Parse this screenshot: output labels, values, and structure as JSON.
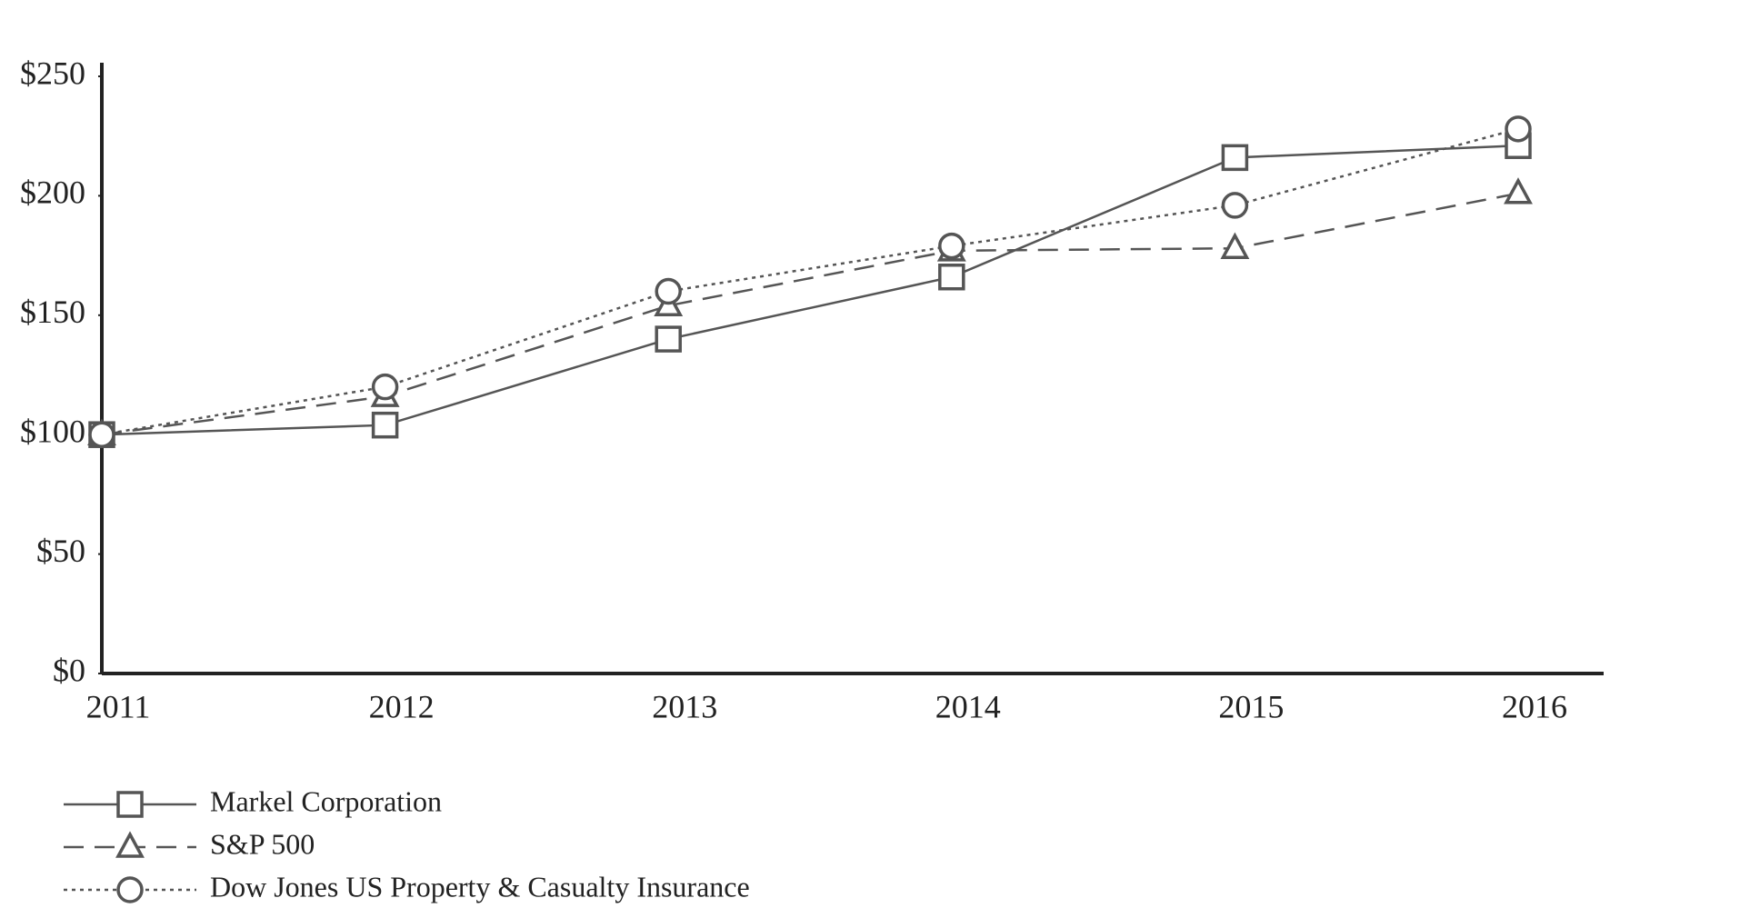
{
  "chart_data": {
    "type": "line",
    "categories": [
      "2011",
      "2012",
      "2013",
      "2014",
      "2015",
      "2016"
    ],
    "ylim": [
      0,
      250
    ],
    "yticks": [
      {
        "value": 0,
        "label": "$0"
      },
      {
        "value": 50,
        "label": "$50"
      },
      {
        "value": 100,
        "label": "$100"
      },
      {
        "value": 150,
        "label": "$150"
      },
      {
        "value": 200,
        "label": "$200"
      },
      {
        "value": 250,
        "label": "$250"
      }
    ],
    "series": [
      {
        "name": "Markel Corporation",
        "color": "#555555",
        "dash": "solid",
        "marker": "square",
        "values": [
          100,
          104,
          140,
          166,
          216,
          221
        ]
      },
      {
        "name": "S&P 500",
        "color": "#555555",
        "dash": "dashed",
        "marker": "triangle",
        "values": [
          100,
          116,
          154,
          177,
          178,
          201
        ]
      },
      {
        "name": "Dow Jones US Property & Casualty Insurance",
        "color": "#555555",
        "dash": "dotted",
        "marker": "circle",
        "values": [
          100,
          120,
          160,
          179,
          196,
          228
        ]
      }
    ]
  }
}
